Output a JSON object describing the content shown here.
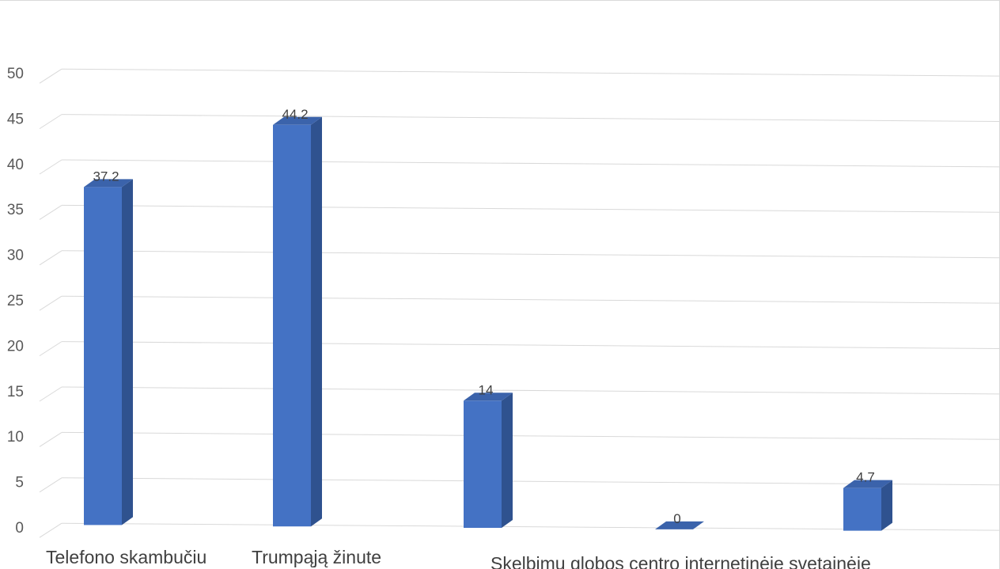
{
  "chart_data": {
    "type": "bar",
    "title": "",
    "xlabel": "",
    "ylabel": "",
    "categories": [
      "Telefono skambučiu",
      "Trumpąją žinute",
      "",
      "",
      ""
    ],
    "values": [
      37.2,
      44.2,
      14,
      0,
      4.7
    ],
    "data_labels": [
      "37.2",
      "44.2",
      "14",
      "0",
      "4.7"
    ],
    "annotations": [
      "Skelbimu globos centro internetinėje svetainėje"
    ],
    "y_ticks": [
      "0",
      "5",
      "10",
      "15",
      "20",
      "25",
      "30",
      "35",
      "40",
      "45",
      "50"
    ],
    "ylim": [
      0,
      50
    ],
    "grid": true,
    "legend": "none",
    "style": "3d-column",
    "colors": {
      "bar_front": "#4472C4",
      "bar_side": "#2F528F",
      "bar_top": "#3B63AB",
      "gridline": "#d9d9d9"
    }
  }
}
